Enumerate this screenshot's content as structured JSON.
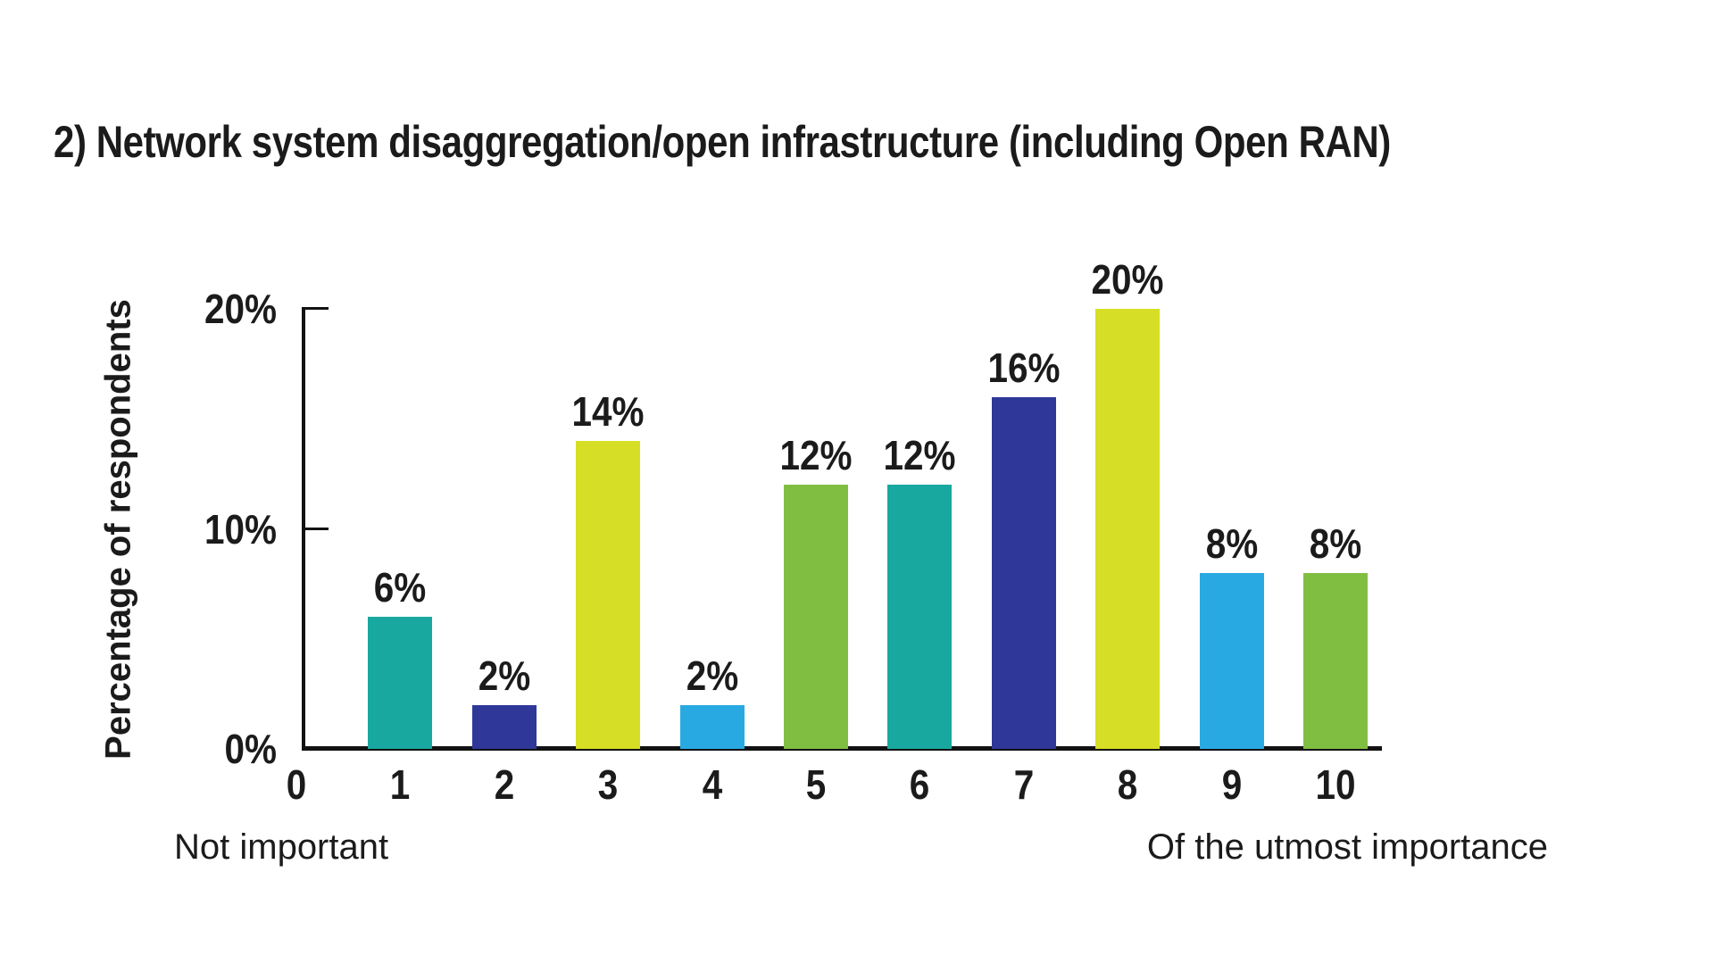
{
  "page": {
    "background": "#ffffff"
  },
  "chart_data": {
    "type": "bar",
    "title": "2) Network system disaggregation/open infrastructure (including Open RAN)",
    "ylabel": "Percentage of respondents",
    "xlabel_left": "Not important",
    "xlabel_right": "Of the utmost importance",
    "x_tick_labels": [
      "0",
      "1",
      "2",
      "3",
      "4",
      "5",
      "6",
      "7",
      "8",
      "9",
      "10"
    ],
    "categories": [
      "1",
      "2",
      "3",
      "4",
      "5",
      "6",
      "7",
      "8",
      "9",
      "10"
    ],
    "values": [
      6,
      2,
      14,
      2,
      12,
      12,
      16,
      20,
      8,
      8
    ],
    "value_labels": [
      "6%",
      "2%",
      "14%",
      "2%",
      "12%",
      "12%",
      "16%",
      "20%",
      "8%",
      "8%"
    ],
    "y_tick_labels": [
      "0%",
      "10%",
      "20%"
    ],
    "y_tick_values": [
      0,
      10,
      20
    ],
    "ylim": [
      0,
      20
    ],
    "grid": false,
    "legend": null,
    "bar_color_cycle": [
      "#19A89F",
      "#2F3898",
      "#D6DE26",
      "#29A9E1",
      "#80BE42"
    ],
    "axis_color": "#121212",
    "text_color": "#1b1b1b"
  }
}
